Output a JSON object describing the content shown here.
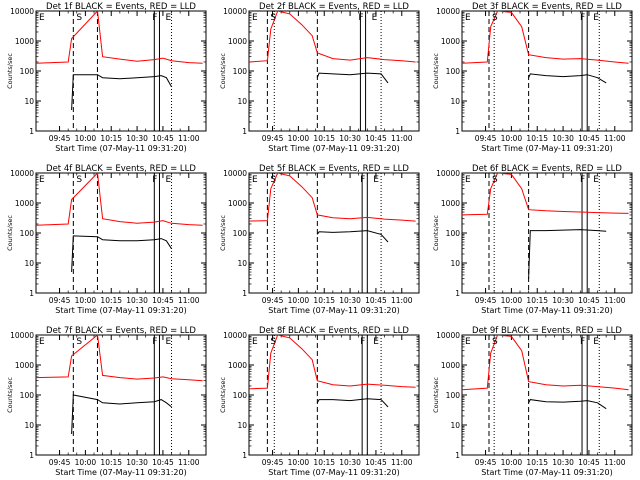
{
  "figure": {
    "background": "#ffffff",
    "axis_color": "#000000",
    "events_color": "#000000",
    "lld_color": "#ff0000"
  },
  "chart_data": [
    {
      "type": "line",
      "title": "Det 1f BLACK = Events, RED = LLD",
      "xlabel": "Start Time (07-May-11 09:31:20)",
      "ylabel": "Counts/sec",
      "yscale": "log",
      "ylim": [
        1,
        10000
      ],
      "xlim": [
        "09:31:20",
        "11:10:00"
      ],
      "x_ticks": [
        "09:45",
        "10:00",
        "10:15",
        "10:30",
        "10:45",
        "11:00"
      ],
      "y_ticks": [
        "1",
        "10",
        "100",
        "1000",
        "10000"
      ],
      "corner_labels": [
        "E",
        "S",
        "F",
        "E"
      ],
      "markers": {
        "dashed": [
          "09:53",
          "10:07"
        ],
        "solid": [
          "10:40",
          "10:43"
        ],
        "dotted": [
          "10:50"
        ]
      },
      "series": [
        {
          "name": "LLD",
          "color": "#ff0000",
          "x": [
            "09:31:20",
            "09:50",
            "09:52",
            "10:07",
            "10:10",
            "10:20",
            "10:30",
            "10:40",
            "10:45",
            "10:50",
            "11:00",
            "11:08"
          ],
          "y": [
            180,
            200,
            1200,
            10000,
            300,
            250,
            210,
            240,
            270,
            220,
            190,
            180
          ]
        },
        {
          "name": "Events",
          "color": "#000000",
          "x": [
            "09:52",
            "09:53",
            "10:07",
            "10:10",
            "10:20",
            "10:30",
            "10:40",
            "10:44",
            "10:47",
            "10:50"
          ],
          "y": [
            5,
            75,
            75,
            60,
            55,
            60,
            65,
            70,
            60,
            30
          ]
        }
      ]
    },
    {
      "type": "line",
      "title": "Det 2f BLACK = Events, RED = LLD",
      "xlabel": "Start Time (07-May-11 09:31:20)",
      "ylabel": "Counts/sec",
      "yscale": "log",
      "ylim": [
        1,
        10000
      ],
      "xlim": [
        "09:31:20",
        "11:10:00"
      ],
      "x_ticks": [
        "09:45",
        "10:00",
        "10:15",
        "10:30",
        "10:45",
        "11:00"
      ],
      "y_ticks": [
        "1",
        "10",
        "100",
        "1000",
        "10000"
      ],
      "corner_labels": [
        "E",
        "S",
        "F",
        "E"
      ],
      "markers": {
        "dashed": [
          "09:42",
          "10:11"
        ],
        "solid": [
          "10:36",
          "10:39"
        ],
        "dotted": [
          "09:46",
          "10:48"
        ]
      },
      "series": [
        {
          "name": "LLD",
          "color": "#ff0000",
          "x": [
            "09:31:20",
            "09:42",
            "09:44",
            "09:48",
            "09:55",
            "10:02",
            "10:08",
            "10:11",
            "10:20",
            "10:30",
            "10:40",
            "10:50",
            "11:00",
            "11:08"
          ],
          "y": [
            200,
            220,
            2500,
            10000,
            8000,
            3500,
            1500,
            400,
            260,
            230,
            280,
            240,
            220,
            200
          ]
        },
        {
          "name": "Events",
          "color": "#000000",
          "x": [
            "10:11",
            "10:12",
            "10:20",
            "10:30",
            "10:40",
            "10:48",
            "10:52"
          ],
          "y": [
            60,
            85,
            80,
            75,
            85,
            80,
            40
          ]
        }
      ]
    },
    {
      "type": "line",
      "title": "Det 3f BLACK = Events, RED = LLD",
      "xlabel": "Start Time (07-May-11 09:31:20)",
      "ylabel": "Counts/sec",
      "yscale": "log",
      "ylim": [
        1,
        10000
      ],
      "xlim": [
        "09:31:20",
        "11:10:00"
      ],
      "x_ticks": [
        "09:45",
        "10:00",
        "10:15",
        "10:30",
        "10:45",
        "11:00"
      ],
      "y_ticks": [
        "1",
        "10",
        "100",
        "1000",
        "10000"
      ],
      "corner_labels": [
        "E",
        "S",
        "F",
        "E"
      ],
      "markers": {
        "dashed": [
          "09:47",
          "10:10"
        ],
        "solid": [
          "10:41",
          "10:44"
        ],
        "dotted": [
          "09:50",
          "10:51"
        ]
      },
      "series": [
        {
          "name": "LLD",
          "color": "#ff0000",
          "x": [
            "09:31:20",
            "09:46",
            "09:48",
            "09:52",
            "10:00",
            "10:06",
            "10:10",
            "10:20",
            "10:30",
            "10:40",
            "10:50",
            "11:00",
            "11:08"
          ],
          "y": [
            180,
            200,
            3000,
            10000,
            9000,
            3000,
            350,
            280,
            250,
            260,
            230,
            200,
            180
          ]
        },
        {
          "name": "Events",
          "color": "#000000",
          "x": [
            "10:10",
            "10:11",
            "10:20",
            "10:30",
            "10:40",
            "10:44",
            "10:50",
            "10:55"
          ],
          "y": [
            60,
            80,
            70,
            65,
            70,
            75,
            60,
            40
          ]
        }
      ]
    },
    {
      "type": "line",
      "title": "Det 4f BLACK = Events, RED = LLD",
      "xlabel": "Start Time (07-May-11 09:31:20)",
      "ylabel": "Counts/sec",
      "yscale": "log",
      "ylim": [
        1,
        10000
      ],
      "xlim": [
        "09:31:20",
        "11:10:00"
      ],
      "x_ticks": [
        "09:45",
        "10:00",
        "10:15",
        "10:30",
        "10:45",
        "11:00"
      ],
      "y_ticks": [
        "1",
        "10",
        "100",
        "1000",
        "10000"
      ],
      "corner_labels": [
        "E",
        "S",
        "F",
        "E"
      ],
      "markers": {
        "dashed": [
          "09:53",
          "10:07"
        ],
        "solid": [
          "10:40",
          "10:43"
        ],
        "dotted": [
          "10:50"
        ]
      },
      "series": [
        {
          "name": "LLD",
          "color": "#ff0000",
          "x": [
            "09:31:20",
            "09:50",
            "09:52",
            "10:07",
            "10:10",
            "10:20",
            "10:30",
            "10:40",
            "10:45",
            "10:50",
            "11:00",
            "11:08"
          ],
          "y": [
            180,
            200,
            1300,
            10000,
            300,
            240,
            210,
            230,
            260,
            210,
            190,
            180
          ]
        },
        {
          "name": "Events",
          "color": "#000000",
          "x": [
            "09:52",
            "09:53",
            "10:07",
            "10:10",
            "10:20",
            "10:30",
            "10:40",
            "10:44",
            "10:47",
            "10:50"
          ],
          "y": [
            5,
            80,
            75,
            60,
            55,
            55,
            60,
            65,
            55,
            30
          ]
        }
      ]
    },
    {
      "type": "line",
      "title": "Det 5f BLACK = Events, RED = LLD",
      "xlabel": "Start Time (07-May-11 09:31:20)",
      "ylabel": "Counts/sec",
      "yscale": "log",
      "ylim": [
        1,
        10000
      ],
      "xlim": [
        "09:31:20",
        "11:10:00"
      ],
      "x_ticks": [
        "09:45",
        "10:00",
        "10:15",
        "10:30",
        "10:45",
        "11:00"
      ],
      "y_ticks": [
        "1",
        "10",
        "100",
        "1000",
        "10000"
      ],
      "corner_labels": [
        "E",
        "S",
        "F",
        "E"
      ],
      "markers": {
        "dashed": [
          "09:42",
          "10:11"
        ],
        "solid": [
          "10:37",
          "10:40"
        ],
        "dotted": [
          "09:46",
          "10:48"
        ]
      },
      "series": [
        {
          "name": "LLD",
          "color": "#ff0000",
          "x": [
            "09:31:20",
            "09:42",
            "09:44",
            "09:48",
            "09:55",
            "10:02",
            "10:08",
            "10:11",
            "10:20",
            "10:30",
            "10:40",
            "10:50",
            "11:00",
            "11:08"
          ],
          "y": [
            250,
            260,
            3000,
            10000,
            8000,
            3500,
            1500,
            400,
            320,
            300,
            330,
            290,
            270,
            250
          ]
        },
        {
          "name": "Events",
          "color": "#000000",
          "x": [
            "10:11",
            "10:12",
            "10:20",
            "10:30",
            "10:40",
            "10:48",
            "10:52"
          ],
          "y": [
            90,
            110,
            105,
            110,
            120,
            90,
            50
          ]
        }
      ]
    },
    {
      "type": "line",
      "title": "Det 6f BLACK = Events, RED = LLD",
      "xlabel": "Start Time (07-May-11 09:31:20)",
      "ylabel": "Counts/sec",
      "yscale": "log",
      "ylim": [
        1,
        10000
      ],
      "xlim": [
        "09:31:20",
        "11:10:00"
      ],
      "x_ticks": [
        "09:45",
        "10:00",
        "10:15",
        "10:30",
        "10:45",
        "11:00"
      ],
      "y_ticks": [
        "1",
        "10",
        "100",
        "1000",
        "10000"
      ],
      "corner_labels": [
        "E",
        "S",
        "F",
        "E"
      ],
      "markers": {
        "dashed": [
          "09:47",
          "10:10"
        ],
        "solid": [
          "10:41",
          "10:44"
        ],
        "dotted": [
          "09:50",
          "10:51"
        ]
      },
      "series": [
        {
          "name": "LLD",
          "color": "#ff0000",
          "x": [
            "09:31:20",
            "09:46",
            "09:48",
            "09:52",
            "10:00",
            "10:06",
            "10:10",
            "10:20",
            "10:30",
            "10:40",
            "10:50",
            "11:00",
            "11:08"
          ],
          "y": [
            400,
            420,
            3000,
            10000,
            9000,
            3000,
            600,
            550,
            520,
            500,
            480,
            460,
            450
          ]
        },
        {
          "name": "Events",
          "color": "#000000",
          "x": [
            "10:10",
            "10:11",
            "10:20",
            "10:30",
            "10:40",
            "10:50",
            "10:55"
          ],
          "y": [
            3,
            120,
            120,
            125,
            130,
            120,
            115
          ]
        }
      ]
    },
    {
      "type": "line",
      "title": "Det 7f BLACK = Events, RED = LLD",
      "xlabel": "Start Time (07-May-11 09:31:20)",
      "ylabel": "Counts/sec",
      "yscale": "log",
      "ylim": [
        1,
        10000
      ],
      "xlim": [
        "09:31:20",
        "11:10:00"
      ],
      "x_ticks": [
        "09:45",
        "10:00",
        "10:15",
        "10:30",
        "10:45",
        "11:00"
      ],
      "y_ticks": [
        "1",
        "10",
        "100",
        "1000",
        "10000"
      ],
      "corner_labels": [
        "E",
        "S",
        "F",
        "E"
      ],
      "markers": {
        "dashed": [
          "09:53",
          "10:07"
        ],
        "solid": [
          "10:40",
          "10:43"
        ],
        "dotted": [
          "10:50"
        ]
      },
      "series": [
        {
          "name": "LLD",
          "color": "#ff0000",
          "x": [
            "09:31:20",
            "09:50",
            "09:52",
            "10:07",
            "10:10",
            "10:20",
            "10:30",
            "10:40",
            "10:45",
            "10:50",
            "11:00",
            "11:08"
          ],
          "y": [
            380,
            400,
            2000,
            10000,
            450,
            380,
            340,
            370,
            400,
            350,
            320,
            300
          ]
        },
        {
          "name": "Events",
          "color": "#000000",
          "x": [
            "09:52",
            "09:53",
            "10:07",
            "10:10",
            "10:20",
            "10:30",
            "10:40",
            "10:44",
            "10:47",
            "10:50"
          ],
          "y": [
            5,
            100,
            70,
            55,
            50,
            55,
            60,
            70,
            55,
            40
          ]
        }
      ]
    },
    {
      "type": "line",
      "title": "Det 8f BLACK = Events, RED = LLD",
      "xlabel": "Start Time (07-May-11 09:31:20)",
      "ylabel": "Counts/sec",
      "yscale": "log",
      "ylim": [
        1,
        10000
      ],
      "xlim": [
        "09:31:20",
        "11:10:00"
      ],
      "x_ticks": [
        "09:45",
        "10:00",
        "10:15",
        "10:30",
        "10:45",
        "11:00"
      ],
      "y_ticks": [
        "1",
        "10",
        "100",
        "1000",
        "10000"
      ],
      "corner_labels": [
        "E",
        "S",
        "F",
        "E"
      ],
      "markers": {
        "dashed": [
          "09:42",
          "10:11"
        ],
        "solid": [
          "10:37",
          "10:40"
        ],
        "dotted": [
          "09:46",
          "10:48"
        ]
      },
      "series": [
        {
          "name": "LLD",
          "color": "#ff0000",
          "x": [
            "09:31:20",
            "09:42",
            "09:44",
            "09:48",
            "09:55",
            "10:02",
            "10:08",
            "10:11",
            "10:20",
            "10:30",
            "10:40",
            "10:50",
            "11:00",
            "11:08"
          ],
          "y": [
            160,
            170,
            2500,
            10000,
            8000,
            3500,
            1500,
            300,
            220,
            200,
            230,
            210,
            190,
            180
          ]
        },
        {
          "name": "Events",
          "color": "#000000",
          "x": [
            "10:11",
            "10:12",
            "10:20",
            "10:30",
            "10:40",
            "10:48",
            "10:52"
          ],
          "y": [
            55,
            70,
            70,
            65,
            75,
            70,
            40
          ]
        }
      ]
    },
    {
      "type": "line",
      "title": "Det 9f BLACK = Events, RED = LLD",
      "xlabel": "Start Time (07-May-11 09:31:20)",
      "ylabel": "Counts/sec",
      "yscale": "log",
      "ylim": [
        1,
        10000
      ],
      "xlim": [
        "09:31:20",
        "11:10:00"
      ],
      "x_ticks": [
        "09:45",
        "10:00",
        "10:15",
        "10:30",
        "10:45",
        "11:00"
      ],
      "y_ticks": [
        "1",
        "10",
        "100",
        "1000",
        "10000"
      ],
      "corner_labels": [
        "E",
        "S",
        "F",
        "E"
      ],
      "markers": {
        "dashed": [
          "09:47",
          "10:10"
        ],
        "solid": [
          "10:41",
          "10:44"
        ],
        "dotted": [
          "09:50",
          "10:51"
        ]
      },
      "series": [
        {
          "name": "LLD",
          "color": "#ff0000",
          "x": [
            "09:31:20",
            "09:46",
            "09:48",
            "09:52",
            "10:00",
            "10:06",
            "10:10",
            "10:20",
            "10:30",
            "10:40",
            "10:50",
            "11:00",
            "11:08"
          ],
          "y": [
            150,
            170,
            2500,
            10000,
            9000,
            3000,
            280,
            220,
            200,
            210,
            190,
            170,
            150
          ]
        },
        {
          "name": "Events",
          "color": "#000000",
          "x": [
            "10:10",
            "10:11",
            "10:20",
            "10:30",
            "10:40",
            "10:44",
            "10:50",
            "10:55"
          ],
          "y": [
            55,
            70,
            60,
            58,
            62,
            65,
            55,
            35
          ]
        }
      ]
    }
  ]
}
